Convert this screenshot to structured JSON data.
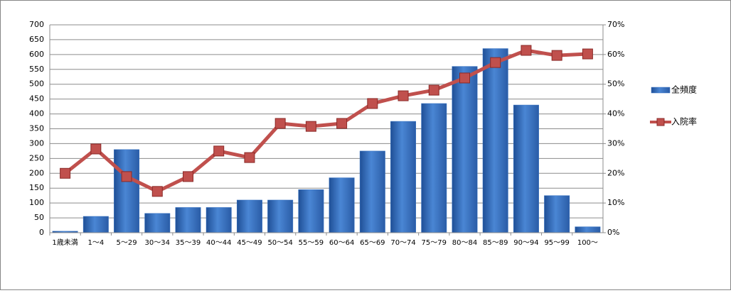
{
  "chart_data": {
    "type": "bar-line",
    "categories": [
      "1歳未満",
      "1～4",
      "5～29",
      "30～34",
      "35～39",
      "40～44",
      "45～49",
      "50～54",
      "55～59",
      "60～64",
      "65～69",
      "70～74",
      "75～79",
      "80～84",
      "85～89",
      "90～94",
      "95～99",
      "100～"
    ],
    "series": [
      {
        "name": "全頻度",
        "type": "bar",
        "color": "#3a75c4",
        "values": [
          5,
          55,
          280,
          65,
          85,
          85,
          110,
          110,
          145,
          185,
          275,
          375,
          435,
          560,
          620,
          430,
          125,
          20
        ]
      },
      {
        "name": "入院率",
        "type": "line",
        "axis": "y2",
        "color": "#c0504d",
        "values": [
          20,
          28.2,
          18.9,
          13.9,
          18.9,
          27.5,
          25.3,
          36.8,
          35.8,
          36.8,
          43.5,
          46.1,
          48,
          52.1,
          57.3,
          61.4,
          59.7,
          60.2
        ]
      }
    ],
    "ylim": [
      0,
      700
    ],
    "yticks": [
      0,
      50,
      100,
      150,
      200,
      250,
      300,
      350,
      400,
      450,
      500,
      550,
      600,
      650,
      700
    ],
    "y2lim": [
      0,
      70
    ],
    "y2ticks": [
      {
        "value": 0,
        "label": "0%"
      },
      {
        "value": 10,
        "label": "10%"
      },
      {
        "value": 20,
        "label": "20%"
      },
      {
        "value": 30,
        "label": "30%"
      },
      {
        "value": 40,
        "label": "40%"
      },
      {
        "value": 50,
        "label": "50%"
      },
      {
        "value": 60,
        "label": "60%"
      },
      {
        "value": 70,
        "label": "70%"
      }
    ],
    "grid": true,
    "legend": "right"
  }
}
